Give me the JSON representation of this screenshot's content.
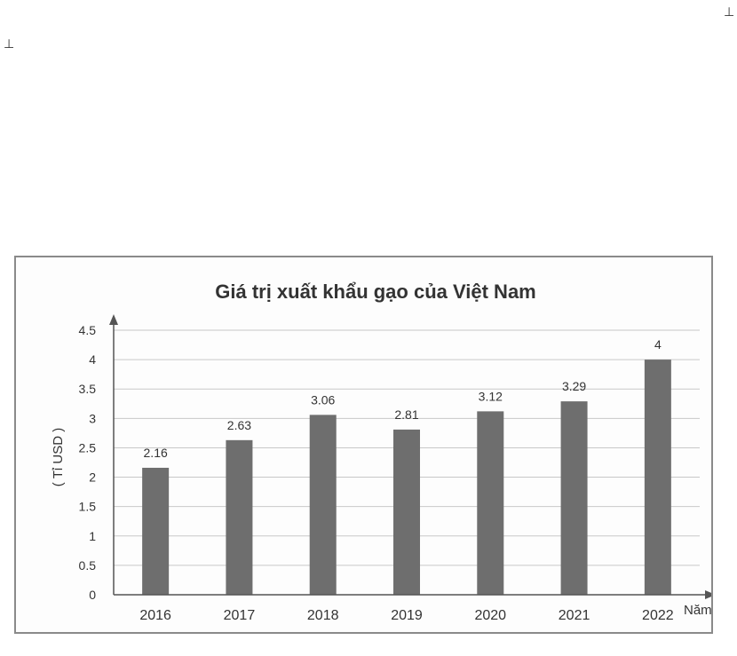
{
  "marks": {
    "top_right": "⊥",
    "top_left": "⊥"
  },
  "chart_data": {
    "type": "bar",
    "title": "Giá trị xuất khẩu gạo của Việt Nam",
    "ylabel": "( Tỉ USD )",
    "xlabel": "Năm",
    "categories": [
      "2016",
      "2017",
      "2018",
      "2019",
      "2020",
      "2021",
      "2022"
    ],
    "values": [
      2.16,
      2.63,
      3.06,
      2.81,
      3.12,
      3.29,
      4
    ],
    "value_labels": [
      "2.16",
      "2.63",
      "3.06",
      "2.81",
      "3.12",
      "3.29",
      "4"
    ],
    "ylim": [
      0,
      4.5
    ],
    "yticks": [
      "0",
      "0.5",
      "1",
      "1.5",
      "2",
      "2.5",
      "3",
      "3.5",
      "4",
      "4.5"
    ],
    "grid": true,
    "legend": "none",
    "colors": {
      "bar": "#6e6e6e",
      "grid": "#c8c8c8",
      "axis": "#555555",
      "frame": "#8a8a8a"
    }
  }
}
